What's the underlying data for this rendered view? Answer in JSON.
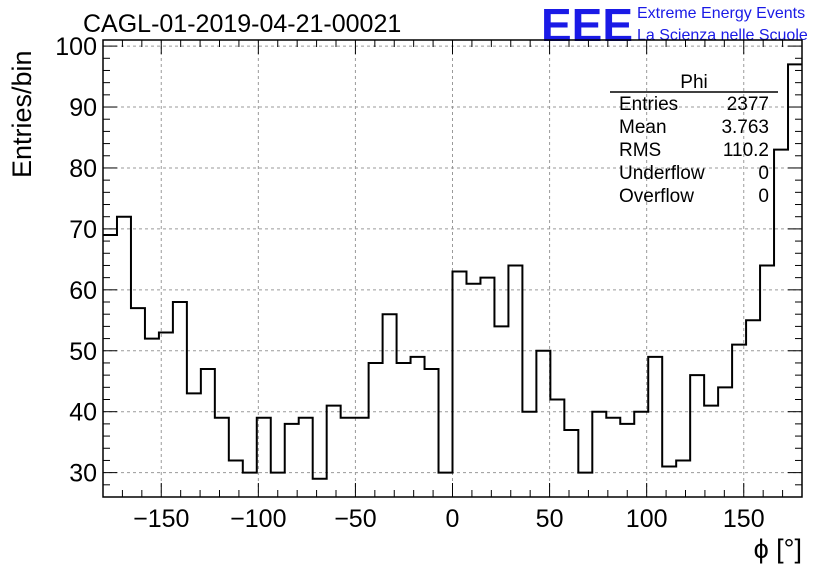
{
  "header": {
    "run_title": "CAGL-01-2019-04-21-00021",
    "logo_text": "EEE",
    "logo_line1": "Extreme Energy Events",
    "logo_line2": "La Scienza nelle Scuole"
  },
  "stats": {
    "name": "Phi",
    "rows": [
      {
        "label": "Entries",
        "value": "2377"
      },
      {
        "label": "Mean",
        "value": "3.763"
      },
      {
        "label": "RMS",
        "value": "110.2"
      },
      {
        "label": "Underflow",
        "value": "0"
      },
      {
        "label": "Overflow",
        "value": "0"
      }
    ]
  },
  "colors": {
    "line": "#000000",
    "grid": "#9a9a9a",
    "logo": "#1a1ae6"
  },
  "chart_data": {
    "type": "bar",
    "style": "step-histogram",
    "xlabel": "ϕ [°]",
    "ylabel": "Entries/bin",
    "xlim": [
      -180,
      180
    ],
    "ylim": [
      26,
      101
    ],
    "xticks": [
      -150,
      -100,
      -50,
      0,
      50,
      100,
      150
    ],
    "yticks": [
      30,
      40,
      50,
      60,
      70,
      80,
      90,
      100
    ],
    "grid": true,
    "bin_width": 7.2,
    "bin_edges_start": -180,
    "values": [
      69,
      72,
      57,
      52,
      53,
      58,
      43,
      47,
      39,
      32,
      30,
      39,
      30,
      38,
      39,
      29,
      41,
      39,
      39,
      48,
      56,
      48,
      49,
      47,
      30,
      63,
      61,
      62,
      54,
      64,
      40,
      50,
      42,
      37,
      30,
      40,
      39,
      38,
      40,
      49,
      31,
      32,
      46,
      41,
      44,
      51,
      55,
      64,
      83,
      97
    ]
  }
}
